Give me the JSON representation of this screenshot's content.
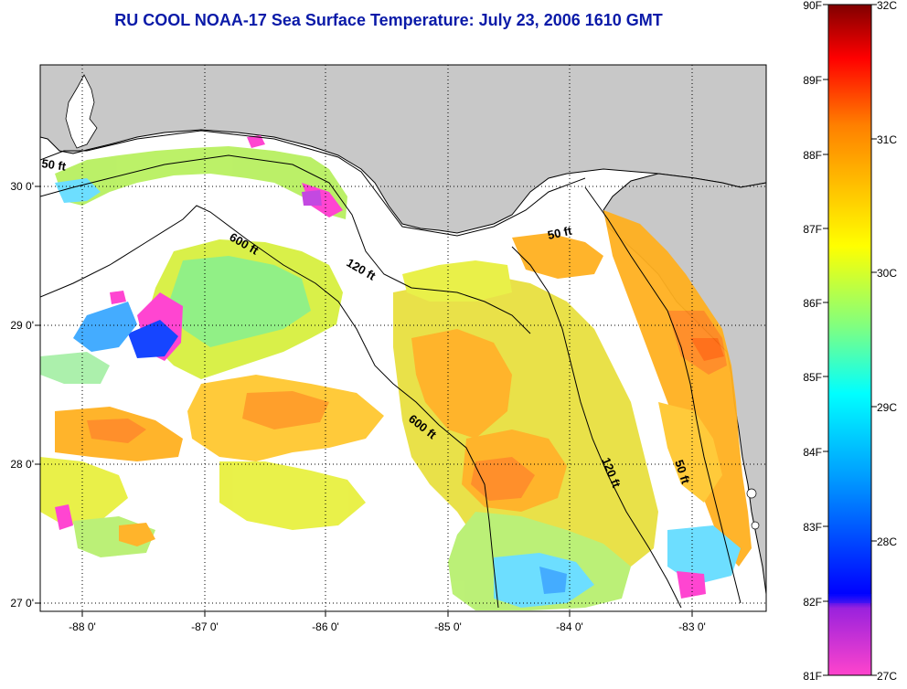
{
  "title": "RU COOL  NOAA-17  Sea Surface Temperature:  July 23, 2006 1610 GMT",
  "map": {
    "lon_range": [
      -88.35,
      -82.4
    ],
    "lat_range": [
      26.97,
      30.82
    ],
    "x_ticks": [
      "-88 0'",
      "-87 0'",
      "-86 0'",
      "-85 0'",
      "-84 0'",
      "-83 0'"
    ],
    "y_ticks": [
      "27 0'",
      "28 0'",
      "29 0'",
      "30 0'"
    ],
    "grid": "dotted",
    "contours": [
      {
        "label": "50 ft"
      },
      {
        "label": "600 ft"
      },
      {
        "label": "120 ft"
      },
      {
        "label": "50 ft"
      },
      {
        "label": "600 ft"
      },
      {
        "label": "120 ft"
      },
      {
        "label": "50 ft"
      }
    ],
    "colors": {
      "land": "#c8c8c8",
      "ocean_nodata": "#ffffff"
    }
  },
  "colorbar": {
    "fahrenheit_labels": [
      "90F",
      "89F",
      "88F",
      "87F",
      "86F",
      "85F",
      "84F",
      "83F",
      "82F",
      "81F"
    ],
    "celsius_labels": [
      "32C",
      "31C",
      "30C",
      "29C",
      "28C",
      "27C"
    ],
    "colors": [
      "#ff44cc",
      "#9a22dd",
      "#0000ff",
      "#00a0ff",
      "#00ffff",
      "#a0ff60",
      "#ffff00",
      "#ff8000",
      "#ff0000",
      "#800000"
    ]
  }
}
